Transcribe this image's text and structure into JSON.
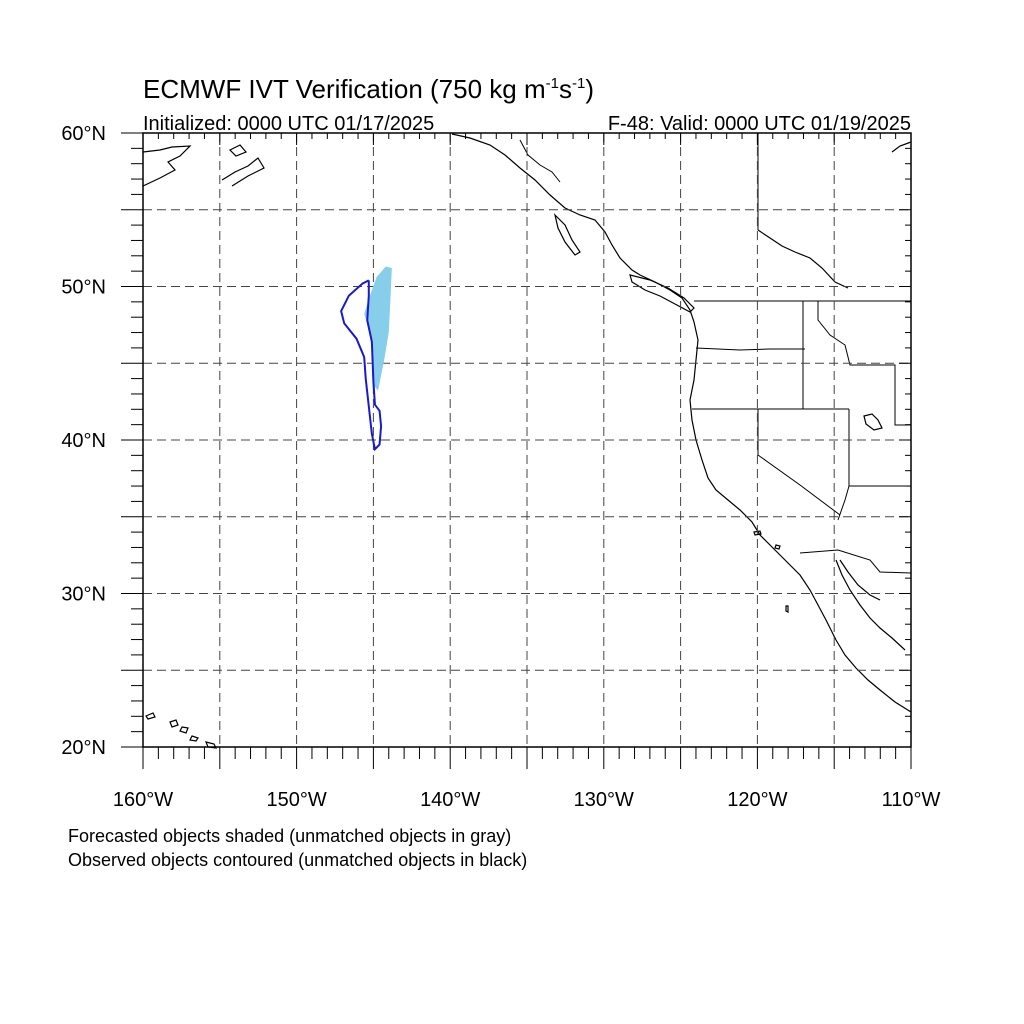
{
  "title": "ECMWF IVT Verification (750 kg m",
  "title_unit_sup1": "-1",
  "title_unit_mid": "s",
  "title_unit_sup2": "-1",
  "title_close": ")",
  "initialized": "Initialized: 0000 UTC 01/17/2025",
  "valid": "F-48: Valid: 0000 UTC 01/19/2025",
  "footer": {
    "line1": "Forecasted objects shaded (unmatched objects in gray)",
    "line2": "Observed objects contoured (unmatched objects in black)"
  },
  "map": {
    "lon_range": [
      -160,
      -110
    ],
    "lat_range": [
      20,
      60
    ],
    "lon_labels": [
      {
        "lon": -160,
        "label": "160°W"
      },
      {
        "lon": -150,
        "label": "150°W"
      },
      {
        "lon": -140,
        "label": "140°W"
      },
      {
        "lon": -130,
        "label": "130°W"
      },
      {
        "lon": -120,
        "label": "120°W"
      },
      {
        "lon": -110,
        "label": "110°W"
      }
    ],
    "lat_labels": [
      {
        "lat": 20,
        "label": "20°N"
      },
      {
        "lat": 30,
        "label": "30°N"
      },
      {
        "lat": 40,
        "label": "40°N"
      },
      {
        "lat": 50,
        "label": "50°N"
      },
      {
        "lat": 60,
        "label": "60°N"
      }
    ],
    "grid_lons": [
      -155,
      -150,
      -145,
      -140,
      -135,
      -130,
      -125,
      -120,
      -115
    ],
    "grid_lats": [
      25,
      30,
      35,
      40,
      45,
      50,
      55
    ],
    "colors": {
      "forecast_fill": "#87ceeb",
      "observed_contour": "#1a1acc",
      "grid": "#444444"
    },
    "forecast_object": [
      [
        -144.2,
        51.3
      ],
      [
        -143.8,
        51.2
      ],
      [
        -143.9,
        49.0
      ],
      [
        -144.0,
        47.0
      ],
      [
        -144.3,
        45.2
      ],
      [
        -144.7,
        43.2
      ],
      [
        -145.0,
        43.6
      ],
      [
        -145.0,
        45.5
      ],
      [
        -145.2,
        47.0
      ],
      [
        -145.6,
        48.2
      ],
      [
        -145.3,
        49.2
      ],
      [
        -144.8,
        50.6
      ]
    ],
    "observed_object": [
      [
        -145.3,
        50.4
      ],
      [
        -145.7,
        50.2
      ],
      [
        -146.6,
        49.4
      ],
      [
        -147.1,
        48.4
      ],
      [
        -146.9,
        47.6
      ],
      [
        -146.1,
        46.6
      ],
      [
        -145.6,
        45.4
      ],
      [
        -145.5,
        44.0
      ],
      [
        -145.3,
        42.2
      ],
      [
        -145.1,
        40.4
      ],
      [
        -144.9,
        39.4
      ],
      [
        -144.6,
        39.7
      ],
      [
        -144.5,
        40.9
      ],
      [
        -144.6,
        41.9
      ],
      [
        -144.9,
        42.3
      ],
      [
        -145.0,
        43.8
      ],
      [
        -145.1,
        46.4
      ],
      [
        -145.4,
        47.8
      ],
      [
        -145.3,
        49.4
      ],
      [
        -145.3,
        50.4
      ]
    ]
  }
}
